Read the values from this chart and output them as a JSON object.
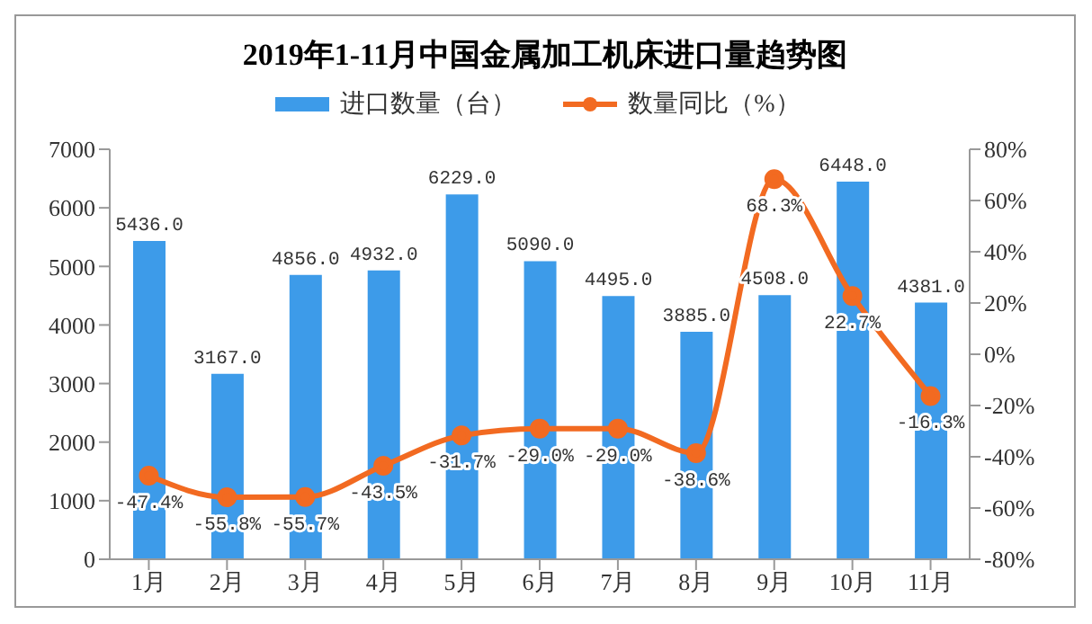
{
  "chart_data": {
    "type": "bar",
    "title": "2019年1-11月中国金属加工机床进口量趋势图",
    "categories": [
      "1月",
      "2月",
      "3月",
      "4月",
      "5月",
      "6月",
      "7月",
      "8月",
      "9月",
      "10月",
      "11月"
    ],
    "series": [
      {
        "name": "进口数量（台）",
        "color": "#3d9be9",
        "values": [
          5436,
          3167,
          4856,
          4932,
          6229,
          5090,
          4495,
          3885,
          4508,
          6448,
          4381
        ],
        "value_labels": [
          "5436.0",
          "3167.0",
          "4856.0",
          "4932.0",
          "6229.0",
          "5090.0",
          "4495.0",
          "3885.0",
          "4508.0",
          "6448.0",
          "4381.0"
        ]
      },
      {
        "name": "数量同比（%）",
        "type": "line",
        "axis": "y2",
        "color": "#f26a21",
        "marker": "circle",
        "values": [
          -47.4,
          -55.8,
          -55.7,
          -43.5,
          -31.7,
          -29.0,
          -29.0,
          -38.6,
          68.3,
          22.7,
          -16.3
        ],
        "value_labels": [
          "-47.4%",
          "-55.8%",
          "-55.7%",
          "-43.5%",
          "-31.7%",
          "-29.0%",
          "-29.0%",
          "-38.6%",
          "68.3%",
          "22.7%",
          "-16.3%"
        ]
      }
    ],
    "ylim": [
      0,
      7000
    ],
    "yticks": [
      0,
      1000,
      2000,
      3000,
      4000,
      5000,
      6000,
      7000
    ],
    "y2lim": [
      -80,
      80
    ],
    "y2ticks": [
      {
        "value": -80,
        "label": "-80%"
      },
      {
        "value": -60,
        "label": "-60%"
      },
      {
        "value": -40,
        "label": "-40%"
      },
      {
        "value": -20,
        "label": "-20%"
      },
      {
        "value": 0,
        "label": "0%"
      },
      {
        "value": 20,
        "label": "20%"
      },
      {
        "value": 40,
        "label": "40%"
      },
      {
        "value": 60,
        "label": "60%"
      },
      {
        "value": 80,
        "label": "80%"
      }
    ],
    "legend": "top",
    "grid": false
  }
}
